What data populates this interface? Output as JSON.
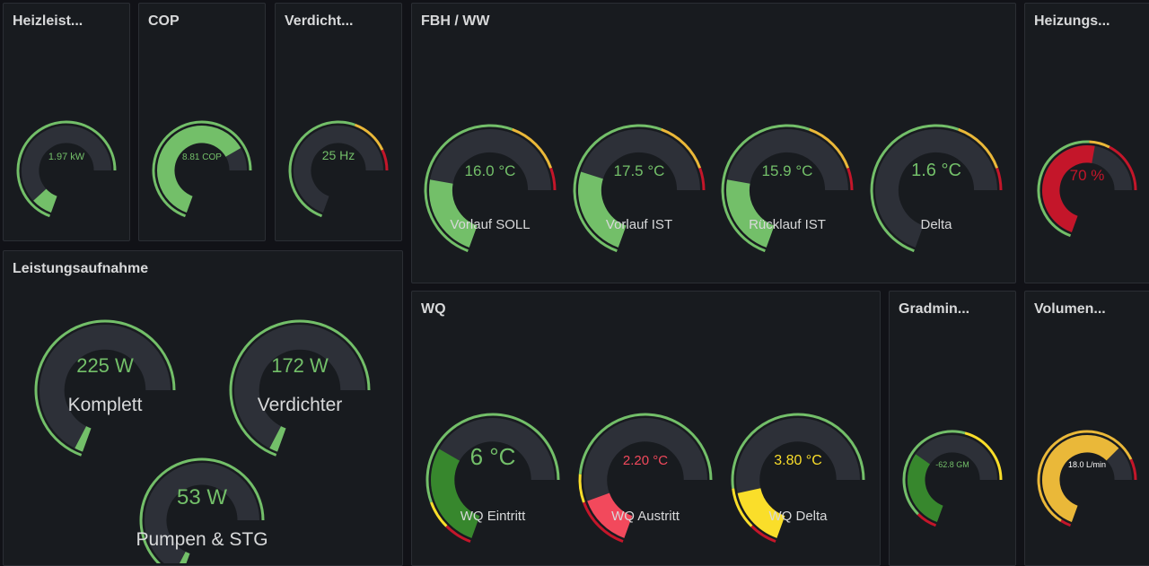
{
  "panels": {
    "heizleistung": {
      "title": "Heizleist..."
    },
    "cop": {
      "title": "COP"
    },
    "verdichter": {
      "title": "Verdicht..."
    },
    "fbh": {
      "title": "FBH / WW"
    },
    "heizungs": {
      "title": "Heizungs..."
    },
    "leistung": {
      "title": "Leistungsaufnahme"
    },
    "wq": {
      "title": "WQ"
    },
    "gradmin": {
      "title": "Gradmin..."
    },
    "volumen": {
      "title": "Volumen..."
    }
  },
  "colors": {
    "panel_bg": "#181b1f",
    "track": "#2d3038",
    "green": "#73bf69",
    "dark_green": "#37872d",
    "yellow": "#fade2a",
    "orange": "#eab839",
    "red": "#c4162a",
    "light_red": "#f2495c"
  },
  "gauges": {
    "heizleistung": {
      "text": "1.97 kW",
      "fill": 0.11,
      "color": "#73bf69",
      "text_color": "#73bf69",
      "thresholds": [
        {
          "from": 0,
          "to": 1,
          "color": "#73bf69"
        }
      ]
    },
    "cop": {
      "text": "8.81 COP",
      "fill": 0.88,
      "color": "#73bf69",
      "text_color": "#73bf69",
      "thresholds": [
        {
          "from": 0,
          "to": 1,
          "color": "#73bf69"
        }
      ]
    },
    "verdichter": {
      "text": "25 Hz",
      "fill": 0.0,
      "color": "#73bf69",
      "text_color": "#73bf69",
      "thresholds": [
        {
          "from": 0,
          "to": 0.72,
          "color": "#73bf69"
        },
        {
          "from": 0.72,
          "to": 0.9,
          "color": "#eab839"
        },
        {
          "from": 0.9,
          "to": 1,
          "color": "#c4162a"
        }
      ]
    },
    "vorlauf_soll": {
      "text": "16.0 °C",
      "label": "Vorlauf SOLL",
      "fill": 0.32,
      "color": "#73bf69",
      "text_color": "#73bf69",
      "thresholds": [
        {
          "from": 0,
          "to": 0.72,
          "color": "#73bf69"
        },
        {
          "from": 0.72,
          "to": 0.92,
          "color": "#eab839"
        },
        {
          "from": 0.92,
          "to": 1,
          "color": "#c4162a"
        }
      ]
    },
    "vorlauf_ist": {
      "text": "17.5 °C",
      "label": "Vorlauf IST",
      "fill": 0.35,
      "color": "#73bf69",
      "text_color": "#73bf69",
      "thresholds": [
        {
          "from": 0,
          "to": 0.72,
          "color": "#73bf69"
        },
        {
          "from": 0.72,
          "to": 0.92,
          "color": "#eab839"
        },
        {
          "from": 0.92,
          "to": 1,
          "color": "#c4162a"
        }
      ]
    },
    "ruecklauf_ist": {
      "text": "15.9 °C",
      "label": "Rücklauf IST",
      "fill": 0.32,
      "color": "#73bf69",
      "text_color": "#73bf69",
      "thresholds": [
        {
          "from": 0,
          "to": 0.72,
          "color": "#73bf69"
        },
        {
          "from": 0.72,
          "to": 0.92,
          "color": "#eab839"
        },
        {
          "from": 0.92,
          "to": 1,
          "color": "#c4162a"
        }
      ]
    },
    "delta": {
      "text": "1.6 °C",
      "label": "Delta",
      "fill": 0.0,
      "color": "#73bf69",
      "text_color": "#73bf69",
      "thresholds": [
        {
          "from": 0,
          "to": 0.72,
          "color": "#73bf69"
        },
        {
          "from": 0.72,
          "to": 0.92,
          "color": "#eab839"
        },
        {
          "from": 0.92,
          "to": 1,
          "color": "#c4162a"
        }
      ]
    },
    "heizungs": {
      "text": "70 %",
      "fill": 0.68,
      "color": "#c4162a",
      "text_color": "#c4162a",
      "thresholds": [
        {
          "from": 0,
          "to": 0.65,
          "color": "#73bf69"
        },
        {
          "from": 0.65,
          "to": 0.75,
          "color": "#eab839"
        },
        {
          "from": 0.75,
          "to": 1,
          "color": "#c4162a"
        }
      ]
    },
    "komplett": {
      "text": "225 W",
      "label": "Komplett",
      "fill": 0.03,
      "color": "#73bf69",
      "text_color": "#73bf69",
      "thresholds": [
        {
          "from": 0,
          "to": 1,
          "color": "#73bf69"
        }
      ]
    },
    "verdichter_w": {
      "text": "172 W",
      "label": "Verdichter",
      "fill": 0.03,
      "color": "#73bf69",
      "text_color": "#73bf69",
      "thresholds": [
        {
          "from": 0,
          "to": 1,
          "color": "#73bf69"
        }
      ]
    },
    "pumpen": {
      "text": "53 W",
      "label": "Pumpen & STG",
      "fill": 0.03,
      "color": "#73bf69",
      "text_color": "#73bf69",
      "thresholds": [
        {
          "from": 0,
          "to": 1,
          "color": "#73bf69"
        }
      ]
    },
    "wq_eintritt": {
      "text": "6 °C",
      "label": "WQ Eintritt",
      "fill": 0.4,
      "color": "#37872d",
      "text_color": "#73bf69",
      "thresholds": [
        {
          "from": 0,
          "to": 0.1,
          "color": "#c4162a"
        },
        {
          "from": 0.1,
          "to": 0.2,
          "color": "#fade2a"
        },
        {
          "from": 0.2,
          "to": 1,
          "color": "#73bf69"
        }
      ]
    },
    "wq_austritt": {
      "text": "2.20 °C",
      "label": "WQ Austritt",
      "fill": 0.2,
      "color": "#f2495c",
      "text_color": "#f2495c",
      "thresholds": [
        {
          "from": 0,
          "to": 0.2,
          "color": "#c4162a"
        },
        {
          "from": 0.2,
          "to": 0.3,
          "color": "#fade2a"
        },
        {
          "from": 0.3,
          "to": 1,
          "color": "#73bf69"
        }
      ]
    },
    "wq_delta": {
      "text": "3.80 °C",
      "label": "WQ Delta",
      "fill": 0.23,
      "color": "#fade2a",
      "text_color": "#fade2a",
      "thresholds": [
        {
          "from": 0,
          "to": 0.1,
          "color": "#c4162a"
        },
        {
          "from": 0.1,
          "to": 0.25,
          "color": "#fade2a"
        },
        {
          "from": 0.25,
          "to": 1,
          "color": "#73bf69"
        }
      ]
    },
    "gradmin": {
      "text": "-62.8 GM",
      "fill": 0.42,
      "color": "#37872d",
      "text_color": "#73bf69",
      "thresholds": [
        {
          "from": 0,
          "to": 0.1,
          "color": "#c4162a"
        },
        {
          "from": 0.1,
          "to": 0.7,
          "color": "#73bf69"
        },
        {
          "from": 0.7,
          "to": 1,
          "color": "#fade2a"
        }
      ]
    },
    "volumen": {
      "text": "18.0 L/min",
      "fill": 0.82,
      "color": "#eab839",
      "text_color": "#ffffff",
      "thresholds": [
        {
          "from": 0,
          "to": 0.05,
          "color": "#c4162a"
        },
        {
          "from": 0.05,
          "to": 0.9,
          "color": "#eab839"
        },
        {
          "from": 0.9,
          "to": 1,
          "color": "#c4162a"
        }
      ]
    }
  }
}
